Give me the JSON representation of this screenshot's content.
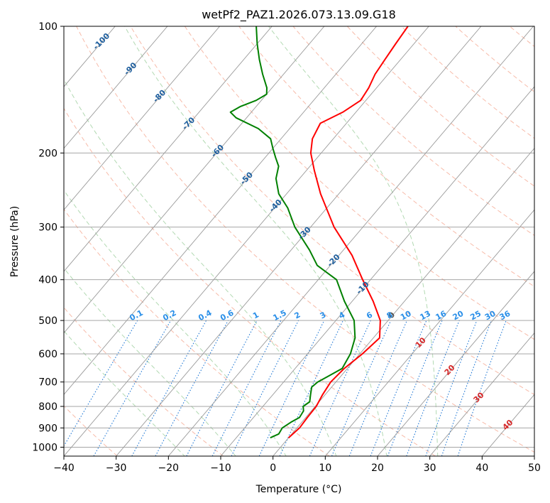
{
  "chart_data": {
    "type": "skew-t",
    "title": "wetPf2_PAZ1.2026.073.13.09.G18",
    "xlabel": "Temperature (°C)",
    "ylabel": "Pressure (hPa)",
    "xlim": [
      -40,
      50
    ],
    "ylim_hpa": [
      1050,
      100
    ],
    "x_ticks": [
      -40,
      -30,
      -20,
      -10,
      0,
      10,
      20,
      30,
      40,
      50
    ],
    "x_tick_labels": [
      "−40",
      "−30",
      "−20",
      "−10",
      "0",
      "10",
      "20",
      "30",
      "40",
      "50"
    ],
    "y_ticks": [
      1000,
      900,
      800,
      700,
      600,
      500,
      400,
      300,
      200,
      100
    ],
    "y_tick_labels": [
      "1000",
      "900",
      "800",
      "700",
      "600",
      "500",
      "400",
      "300",
      "200",
      "100"
    ],
    "isotherms_c": [
      -100,
      -90,
      -80,
      -70,
      -60,
      -50,
      -40,
      -30,
      -20,
      -10,
      0,
      10,
      20,
      30,
      40,
      50
    ],
    "isotherm_labels": [
      {
        "t": -100,
        "text": "-100",
        "color": "#1f5f9e"
      },
      {
        "t": -90,
        "text": "-90",
        "color": "#1f5f9e"
      },
      {
        "t": -80,
        "text": "-80",
        "color": "#1f5f9e"
      },
      {
        "t": -70,
        "text": "-70",
        "color": "#1f5f9e"
      },
      {
        "t": -60,
        "text": "-60",
        "color": "#1f5f9e"
      },
      {
        "t": -50,
        "text": "-50",
        "color": "#1f5f9e"
      },
      {
        "t": -40,
        "text": "-40",
        "color": "#1f5f9e"
      },
      {
        "t": -30,
        "text": "-30",
        "color": "#1f5f9e"
      },
      {
        "t": -20,
        "text": "-20",
        "color": "#1f5f9e"
      },
      {
        "t": -10,
        "text": "-10",
        "color": "#1f5f9e"
      },
      {
        "t": 0,
        "text": "0",
        "color": "#555555"
      },
      {
        "t": 10,
        "text": "10",
        "color": "#d62728"
      },
      {
        "t": 20,
        "text": "20",
        "color": "#d62728"
      },
      {
        "t": 30,
        "text": "30",
        "color": "#d62728"
      },
      {
        "t": 40,
        "text": "40",
        "color": "#d62728"
      }
    ],
    "mixing_ratio_labels": [
      "0.1",
      "0.2",
      "0.4",
      "0.6",
      "1",
      "1.5",
      "2",
      "3",
      "4",
      "6",
      "8",
      "10",
      "13",
      "16",
      "20",
      "25",
      "30",
      "36"
    ],
    "mixing_ratio_values": [
      0.1,
      0.2,
      0.4,
      0.6,
      1,
      1.5,
      2,
      3,
      4,
      6,
      8,
      10,
      13,
      16,
      20,
      25,
      30,
      36
    ],
    "mixing_ratio_label_pressure_hpa": 500,
    "dry_adiabats_theta_k": [
      240,
      260,
      280,
      300,
      320,
      340,
      360,
      380,
      400,
      420,
      440,
      460,
      480,
      500,
      520,
      540
    ],
    "moist_adiabats_start_c": [
      -20,
      -10,
      0,
      10,
      20,
      30
    ],
    "series": [
      {
        "name": "Temperature",
        "color": "#ff0000",
        "pressure": [
          950,
          900,
          850,
          800,
          750,
          700,
          650,
          600,
          550,
          500,
          450,
          400,
          350,
          300,
          250,
          220,
          200,
          185,
          170,
          160,
          150,
          140,
          130,
          120,
          110,
          100
        ],
        "temp_c": [
          0,
          0.5,
          0.3,
          0.2,
          -0.5,
          -1.0,
          -0.6,
          0.5,
          1.2,
          -1.5,
          -6.0,
          -11.5,
          -17.5,
          -25.5,
          -33.5,
          -38.5,
          -42.0,
          -44.0,
          -45.0,
          -42.5,
          -41.0,
          -41.5,
          -42.5,
          -43.0,
          -43.5,
          -44.0
        ]
      },
      {
        "name": "Dewpoint",
        "color": "#008000",
        "pressure": [
          950,
          930,
          900,
          870,
          850,
          820,
          800,
          780,
          750,
          720,
          700,
          680,
          650,
          600,
          550,
          500,
          450,
          400,
          370,
          340,
          300,
          270,
          250,
          230,
          215,
          205,
          195,
          185,
          175,
          165,
          160,
          155,
          150,
          145,
          140,
          130,
          120,
          110,
          100
        ],
        "temp_c": [
          -3.5,
          -2.5,
          -2.8,
          -2.0,
          -1.2,
          -1.5,
          -2.3,
          -1.8,
          -2.8,
          -3.8,
          -3.5,
          -2.5,
          -1.0,
          -1.8,
          -3.5,
          -6.5,
          -11.5,
          -16.5,
          -22.5,
          -26.5,
          -33.0,
          -37.5,
          -41.5,
          -44.5,
          -46.0,
          -48.0,
          -50.0,
          -52.0,
          -56.0,
          -62.0,
          -64.0,
          -63.0,
          -61.0,
          -60.0,
          -61.0,
          -64.0,
          -67.0,
          -70.0,
          -73.0
        ]
      }
    ]
  }
}
